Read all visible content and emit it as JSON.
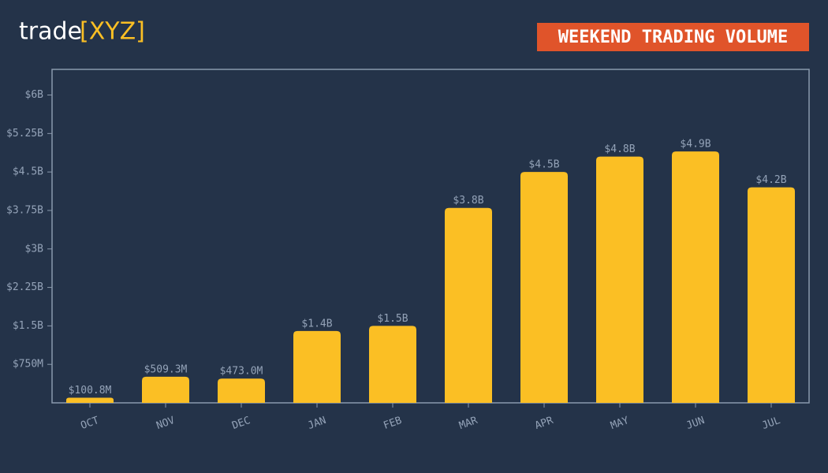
{
  "brand": {
    "name": "trade",
    "mark": "[XYZ]"
  },
  "chart_data": {
    "type": "bar",
    "title": "WEEKEND TRADING VOLUME",
    "categories": [
      "OCT",
      "NOV",
      "DEC",
      "JAN",
      "FEB",
      "MAR",
      "APR",
      "MAY",
      "JUN",
      "JUL"
    ],
    "values": [
      100800000,
      509300000,
      473000000,
      1400000000,
      1500000000,
      3800000000,
      4500000000,
      4800000000,
      4900000000,
      4200000000
    ],
    "value_labels": [
      "$100.8M",
      "$509.3M",
      "$473.0M",
      "$1.4B",
      "$1.5B",
      "$3.8B",
      "$4.5B",
      "$4.8B",
      "$4.9B",
      "$4.2B"
    ],
    "color": "#fbbf24",
    "ylim": [
      0,
      6500000000
    ],
    "yticks": [
      {
        "value": 750000000,
        "label": "$750M"
      },
      {
        "value": 1500000000,
        "label": "$1.5B"
      },
      {
        "value": 2250000000,
        "label": "$2.25B"
      },
      {
        "value": 3000000000,
        "label": "$3B"
      },
      {
        "value": 3750000000,
        "label": "$3.75B"
      },
      {
        "value": 4500000000,
        "label": "$4.5B"
      },
      {
        "value": 5250000000,
        "label": "$5.25B"
      },
      {
        "value": 6000000000,
        "label": "$6B"
      }
    ],
    "grid": false
  }
}
